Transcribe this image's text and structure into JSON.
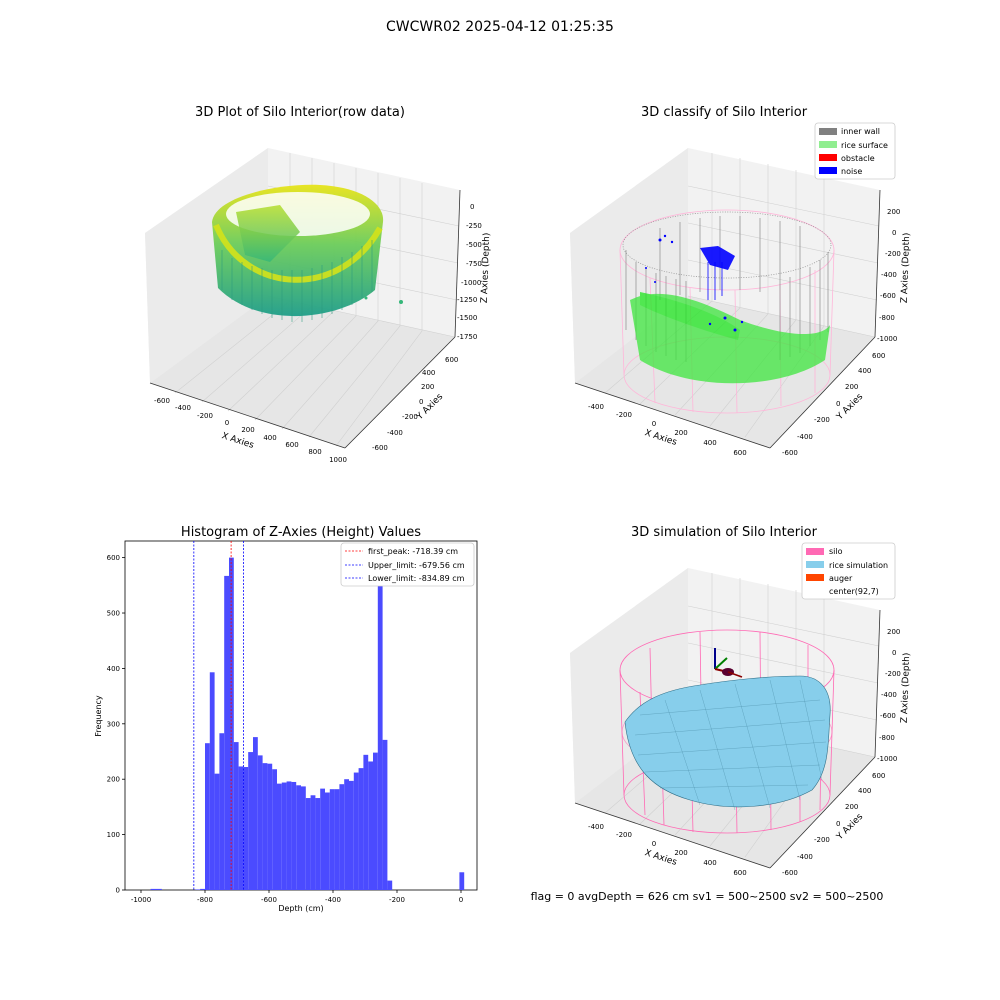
{
  "suptitle": "CWCWR02 2025-04-12 01:25:35",
  "status_line": "flag = 0     avgDepth = 626 cm  sv1 = 500~2500  sv2 = 500~2500",
  "panels": {
    "raw": {
      "title": "3D Plot of Silo Interior(row data)",
      "xlabel": "X Axies",
      "ylabel": "Y Axies",
      "zlabel": "Z Axies (Depth)",
      "xticks": [
        "-600",
        "-400",
        "-200",
        "0",
        "200",
        "400",
        "600",
        "800",
        "1000"
      ],
      "yticks": [
        "-600",
        "-400",
        "-200",
        "0",
        "200",
        "400",
        "600"
      ],
      "zticks": [
        "0",
        "-250",
        "-500",
        "-750",
        "-1000",
        "-1250",
        "-1500",
        "-1750"
      ]
    },
    "classify": {
      "title": "3D classify of Silo Interior",
      "xlabel": "X Axies",
      "ylabel": "Y Axies",
      "zlabel": "Z Axies (Depth)",
      "xticks": [
        "-400",
        "-200",
        "0",
        "200",
        "400",
        "600"
      ],
      "yticks": [
        "-600",
        "-400",
        "-200",
        "0",
        "200",
        "400",
        "600"
      ],
      "zticks": [
        "200",
        "0",
        "-200",
        "-400",
        "-600",
        "-800",
        "-1000"
      ],
      "legend": [
        {
          "label": "inner wall",
          "color": "#808080"
        },
        {
          "label": "rice surface",
          "color": "#90ee90"
        },
        {
          "label": "obstacle",
          "color": "#ff0000"
        },
        {
          "label": "noise",
          "color": "#0000ff"
        }
      ]
    },
    "simulation": {
      "title": "3D simulation of Silo Interior",
      "xlabel": "X Axies",
      "ylabel": "Y Axies",
      "zlabel": "Z Axies (Depth)",
      "xticks": [
        "-400",
        "-200",
        "0",
        "200",
        "400",
        "600"
      ],
      "yticks": [
        "-600",
        "-400",
        "-200",
        "0",
        "200",
        "400",
        "600"
      ],
      "zticks": [
        "200",
        "0",
        "-200",
        "-400",
        "-600",
        "-800",
        "-1000"
      ],
      "legend": [
        {
          "label": "silo",
          "color": "#ff69b4"
        },
        {
          "label": "rice simulation",
          "color": "#87ceeb"
        },
        {
          "label": "auger",
          "color": "#ff4500"
        },
        {
          "label": "center(92,7)",
          "color": "#ffffff"
        }
      ]
    }
  },
  "chart_data": {
    "type": "bar",
    "title": "Histogram of Z-Axies (Height) Values",
    "xlabel": "Depth (cm)",
    "ylabel": "Frequency",
    "xlim": [
      -1050,
      50
    ],
    "ylim": [
      0,
      630
    ],
    "xticks": [
      -1000,
      -800,
      -600,
      -400,
      -200,
      0
    ],
    "yticks": [
      0,
      100,
      200,
      300,
      400,
      500,
      600
    ],
    "bar_color": "#4b4bff",
    "bins": [
      {
        "x0": -970,
        "x1": -950,
        "count": 2
      },
      {
        "x0": -950,
        "x1": -935,
        "count": 2
      },
      {
        "x0": -830,
        "x1": -815,
        "count": 1
      },
      {
        "x0": -815,
        "x1": -800,
        "count": 2
      },
      {
        "x0": -800,
        "x1": -785,
        "count": 265
      },
      {
        "x0": -785,
        "x1": -770,
        "count": 393
      },
      {
        "x0": -770,
        "x1": -755,
        "count": 210
      },
      {
        "x0": -755,
        "x1": -740,
        "count": 283
      },
      {
        "x0": -740,
        "x1": -725,
        "count": 567
      },
      {
        "x0": -725,
        "x1": -710,
        "count": 600
      },
      {
        "x0": -710,
        "x1": -695,
        "count": 267
      },
      {
        "x0": -695,
        "x1": -680,
        "count": 223
      },
      {
        "x0": -680,
        "x1": -665,
        "count": 222
      },
      {
        "x0": -665,
        "x1": -650,
        "count": 249
      },
      {
        "x0": -650,
        "x1": -635,
        "count": 276
      },
      {
        "x0": -635,
        "x1": -620,
        "count": 243
      },
      {
        "x0": -620,
        "x1": -605,
        "count": 229
      },
      {
        "x0": -605,
        "x1": -590,
        "count": 228
      },
      {
        "x0": -590,
        "x1": -575,
        "count": 218
      },
      {
        "x0": -575,
        "x1": -560,
        "count": 192
      },
      {
        "x0": -560,
        "x1": -545,
        "count": 194
      },
      {
        "x0": -545,
        "x1": -530,
        "count": 196
      },
      {
        "x0": -530,
        "x1": -515,
        "count": 195
      },
      {
        "x0": -515,
        "x1": -500,
        "count": 189
      },
      {
        "x0": -500,
        "x1": -485,
        "count": 187
      },
      {
        "x0": -485,
        "x1": -470,
        "count": 166
      },
      {
        "x0": -470,
        "x1": -455,
        "count": 171
      },
      {
        "x0": -455,
        "x1": -440,
        "count": 166
      },
      {
        "x0": -440,
        "x1": -425,
        "count": 183
      },
      {
        "x0": -425,
        "x1": -410,
        "count": 176
      },
      {
        "x0": -410,
        "x1": -395,
        "count": 182
      },
      {
        "x0": -395,
        "x1": -380,
        "count": 182
      },
      {
        "x0": -380,
        "x1": -365,
        "count": 191
      },
      {
        "x0": -365,
        "x1": -350,
        "count": 200
      },
      {
        "x0": -350,
        "x1": -335,
        "count": 197
      },
      {
        "x0": -335,
        "x1": -320,
        "count": 212
      },
      {
        "x0": -320,
        "x1": -305,
        "count": 220
      },
      {
        "x0": -305,
        "x1": -290,
        "count": 244
      },
      {
        "x0": -290,
        "x1": -275,
        "count": 232
      },
      {
        "x0": -275,
        "x1": -260,
        "count": 248
      },
      {
        "x0": -260,
        "x1": -245,
        "count": 558
      },
      {
        "x0": -245,
        "x1": -230,
        "count": 271
      },
      {
        "x0": -230,
        "x1": -215,
        "count": 17
      },
      {
        "x0": -5,
        "x1": 10,
        "count": 32
      }
    ],
    "vlines": [
      {
        "x": -718.39,
        "color": "#ff0000",
        "label": "first_peak: -718.39 cm"
      },
      {
        "x": -679.56,
        "color": "#0000ff",
        "label": "Upper_limit: -679.56 cm"
      },
      {
        "x": -834.89,
        "color": "#0000ff",
        "label": "Lower_limit: -834.89 cm"
      }
    ]
  }
}
